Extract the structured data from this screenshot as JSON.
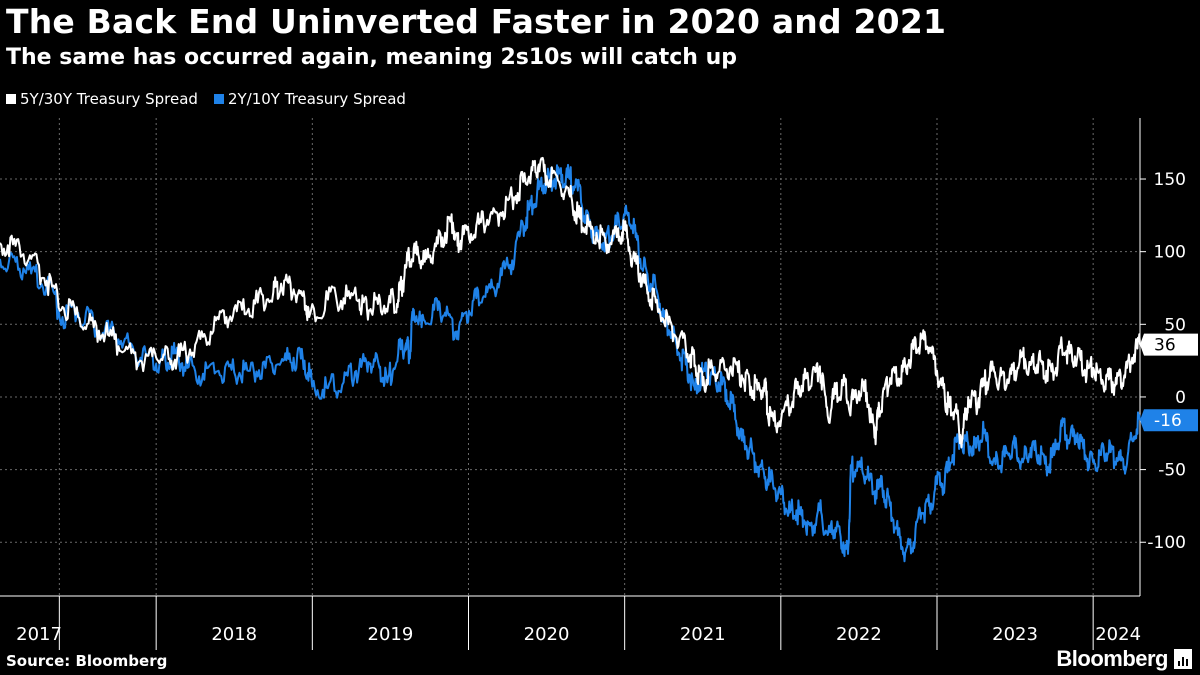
{
  "header": {
    "title": "The Back End Uninverted Faster in 2020 and 2021",
    "subtitle": "The same has occurred again, meaning 2s10s will catch up"
  },
  "footer": {
    "source": "Source: Bloomberg",
    "brand": "Bloomberg"
  },
  "colors": {
    "background": "#000000",
    "series_5s30s": "#ffffff",
    "series_2s10s": "#1f82e8",
    "grid": "#6a6a6a"
  },
  "chart_data": {
    "type": "line",
    "title": "The Back End Uninverted Faster in 2020 and 2021",
    "subtitle": "The same has occurred again, meaning 2s10s will catch up",
    "xlabel": "",
    "ylabel": "",
    "x_range": [
      2017.0,
      2024.3
    ],
    "ylim": [
      -137,
      192
    ],
    "y_ticks": [
      150,
      100,
      50,
      0,
      -50,
      -100
    ],
    "year_labels": [
      {
        "label": "2017",
        "t": 2017.25
      },
      {
        "label": "2018",
        "t": 2018.5
      },
      {
        "label": "2019",
        "t": 2019.5
      },
      {
        "label": "2020",
        "t": 2020.5
      },
      {
        "label": "2021",
        "t": 2021.5
      },
      {
        "label": "2022",
        "t": 2022.5
      },
      {
        "label": "2023",
        "t": 2023.5
      },
      {
        "label": "2024",
        "t": 2024.16
      }
    ],
    "year_boundaries": [
      2017.38,
      2018.0,
      2019.0,
      2020.0,
      2021.0,
      2022.0,
      2023.0,
      2024.0
    ],
    "grid": true,
    "legend_position": "top-left",
    "series": [
      {
        "name": "5Y/30Y Treasury Spread",
        "last_value_label": "36",
        "points": [
          [
            2017.0,
            106
          ],
          [
            2017.1,
            104
          ],
          [
            2017.2,
            95
          ],
          [
            2017.3,
            80
          ],
          [
            2017.4,
            62
          ],
          [
            2017.5,
            55
          ],
          [
            2017.6,
            48
          ],
          [
            2017.7,
            42
          ],
          [
            2017.8,
            32
          ],
          [
            2017.9,
            25
          ],
          [
            2018.0,
            27
          ],
          [
            2018.08,
            26
          ],
          [
            2018.15,
            28
          ],
          [
            2018.25,
            36
          ],
          [
            2018.35,
            45
          ],
          [
            2018.45,
            55
          ],
          [
            2018.55,
            60
          ],
          [
            2018.65,
            65
          ],
          [
            2018.75,
            72
          ],
          [
            2018.8,
            78
          ],
          [
            2018.88,
            74
          ],
          [
            2018.95,
            68
          ],
          [
            2018.98,
            55
          ],
          [
            2019.1,
            67
          ],
          [
            2019.2,
            68
          ],
          [
            2019.3,
            67
          ],
          [
            2019.35,
            60
          ],
          [
            2019.42,
            64
          ],
          [
            2019.5,
            65
          ],
          [
            2019.55,
            67
          ],
          [
            2019.58,
            80
          ],
          [
            2019.62,
            96
          ],
          [
            2019.67,
            98
          ],
          [
            2019.72,
            93
          ],
          [
            2019.78,
            101
          ],
          [
            2019.85,
            113
          ],
          [
            2019.9,
            120
          ],
          [
            2019.93,
            104
          ],
          [
            2019.97,
            112
          ],
          [
            2020.05,
            118
          ],
          [
            2020.12,
            122
          ],
          [
            2020.2,
            126
          ],
          [
            2020.28,
            137
          ],
          [
            2020.35,
            148
          ],
          [
            2020.4,
            154
          ],
          [
            2020.45,
            160
          ],
          [
            2020.5,
            152
          ],
          [
            2020.58,
            148
          ],
          [
            2020.65,
            138
          ],
          [
            2020.7,
            124
          ],
          [
            2020.75,
            117
          ],
          [
            2020.82,
            113
          ],
          [
            2020.88,
            105
          ],
          [
            2020.95,
            110
          ],
          [
            2021.0,
            115
          ],
          [
            2021.05,
            95
          ],
          [
            2021.1,
            85
          ],
          [
            2021.15,
            72
          ],
          [
            2021.2,
            65
          ],
          [
            2021.28,
            50
          ],
          [
            2021.35,
            40
          ],
          [
            2021.42,
            29
          ],
          [
            2021.45,
            22
          ],
          [
            2021.5,
            8
          ],
          [
            2021.55,
            20
          ],
          [
            2021.6,
            17
          ],
          [
            2021.68,
            21
          ],
          [
            2021.75,
            15
          ],
          [
            2021.8,
            9
          ],
          [
            2021.85,
            5
          ],
          [
            2021.9,
            10
          ],
          [
            2021.92,
            -15
          ],
          [
            2021.98,
            -18
          ],
          [
            2022.05,
            -6
          ],
          [
            2022.1,
            6
          ],
          [
            2022.15,
            12
          ],
          [
            2022.2,
            14
          ],
          [
            2022.25,
            21
          ],
          [
            2022.3,
            -13
          ],
          [
            2022.35,
            2
          ],
          [
            2022.4,
            8
          ],
          [
            2022.45,
            -5
          ],
          [
            2022.5,
            4
          ],
          [
            2022.55,
            3
          ],
          [
            2022.6,
            -28
          ],
          [
            2022.62,
            -15
          ],
          [
            2022.65,
            -2
          ],
          [
            2022.7,
            13
          ],
          [
            2022.75,
            12
          ],
          [
            2022.8,
            21
          ],
          [
            2022.85,
            33
          ],
          [
            2022.9,
            40
          ],
          [
            2022.95,
            34
          ],
          [
            2023.0,
            18
          ],
          [
            2023.05,
            0
          ],
          [
            2023.08,
            -7
          ],
          [
            2023.12,
            -10
          ],
          [
            2023.16,
            -30
          ],
          [
            2023.2,
            0
          ],
          [
            2023.25,
            -5
          ],
          [
            2023.3,
            8
          ],
          [
            2023.35,
            18
          ],
          [
            2023.4,
            12
          ],
          [
            2023.45,
            12
          ],
          [
            2023.5,
            18
          ],
          [
            2023.55,
            28
          ],
          [
            2023.6,
            22
          ],
          [
            2023.65,
            25
          ],
          [
            2023.7,
            18
          ],
          [
            2023.75,
            17
          ],
          [
            2023.8,
            35
          ],
          [
            2023.85,
            30
          ],
          [
            2023.9,
            28
          ],
          [
            2023.95,
            18
          ],
          [
            2024.0,
            20
          ],
          [
            2024.05,
            12
          ],
          [
            2024.1,
            12
          ],
          [
            2024.15,
            9
          ],
          [
            2024.2,
            15
          ],
          [
            2024.25,
            27
          ],
          [
            2024.3,
            36
          ]
        ]
      },
      {
        "name": "2Y/10Y  Treasury Spread",
        "last_value_label": "-16",
        "points": [
          [
            2017.0,
            95
          ],
          [
            2017.1,
            93
          ],
          [
            2017.2,
            85
          ],
          [
            2017.3,
            78
          ],
          [
            2017.4,
            55
          ],
          [
            2017.5,
            58
          ],
          [
            2017.6,
            50
          ],
          [
            2017.7,
            45
          ],
          [
            2017.8,
            40
          ],
          [
            2017.9,
            27
          ],
          [
            2018.0,
            23
          ],
          [
            2018.06,
            25
          ],
          [
            2018.12,
            30
          ],
          [
            2018.2,
            20
          ],
          [
            2018.3,
            16
          ],
          [
            2018.4,
            18
          ],
          [
            2018.5,
            17
          ],
          [
            2018.6,
            18
          ],
          [
            2018.7,
            20
          ],
          [
            2018.8,
            24
          ],
          [
            2018.88,
            27
          ],
          [
            2018.95,
            25
          ],
          [
            2019.0,
            7
          ],
          [
            2019.1,
            6
          ],
          [
            2019.2,
            10
          ],
          [
            2019.28,
            18
          ],
          [
            2019.36,
            24
          ],
          [
            2019.43,
            20
          ],
          [
            2019.48,
            10
          ],
          [
            2019.55,
            30
          ],
          [
            2019.6,
            37
          ],
          [
            2019.62,
            30
          ],
          [
            2019.65,
            60
          ],
          [
            2019.7,
            48
          ],
          [
            2019.78,
            60
          ],
          [
            2019.85,
            58
          ],
          [
            2019.92,
            45
          ],
          [
            2019.98,
            58
          ],
          [
            2020.05,
            68
          ],
          [
            2020.12,
            72
          ],
          [
            2020.2,
            80
          ],
          [
            2020.28,
            94
          ],
          [
            2020.35,
            118
          ],
          [
            2020.4,
            132
          ],
          [
            2020.45,
            143
          ],
          [
            2020.5,
            148
          ],
          [
            2020.55,
            150
          ],
          [
            2020.6,
            153
          ],
          [
            2020.65,
            150
          ],
          [
            2020.7,
            142
          ],
          [
            2020.75,
            125
          ],
          [
            2020.8,
            114
          ],
          [
            2020.85,
            105
          ],
          [
            2020.9,
            110
          ],
          [
            2020.95,
            118
          ],
          [
            2021.0,
            125
          ],
          [
            2021.05,
            118
          ],
          [
            2021.1,
            95
          ],
          [
            2021.15,
            80
          ],
          [
            2021.2,
            75
          ],
          [
            2021.25,
            55
          ],
          [
            2021.3,
            45
          ],
          [
            2021.35,
            30
          ],
          [
            2021.4,
            20
          ],
          [
            2021.45,
            5
          ],
          [
            2021.5,
            17
          ],
          [
            2021.55,
            15
          ],
          [
            2021.6,
            10
          ],
          [
            2021.65,
            5
          ],
          [
            2021.7,
            -10
          ],
          [
            2021.75,
            -30
          ],
          [
            2021.8,
            -35
          ],
          [
            2021.85,
            -48
          ],
          [
            2021.9,
            -55
          ],
          [
            2021.95,
            -60
          ],
          [
            2022.0,
            -67
          ],
          [
            2022.05,
            -80
          ],
          [
            2022.1,
            -78
          ],
          [
            2022.15,
            -85
          ],
          [
            2022.2,
            -90
          ],
          [
            2022.25,
            -78
          ],
          [
            2022.3,
            -95
          ],
          [
            2022.35,
            -90
          ],
          [
            2022.4,
            -100
          ],
          [
            2022.43,
            -108
          ],
          [
            2022.45,
            -50
          ],
          [
            2022.5,
            -48
          ],
          [
            2022.55,
            -55
          ],
          [
            2022.6,
            -65
          ],
          [
            2022.65,
            -62
          ],
          [
            2022.7,
            -75
          ],
          [
            2022.75,
            -95
          ],
          [
            2022.8,
            -106
          ],
          [
            2022.85,
            -100
          ],
          [
            2022.9,
            -80
          ],
          [
            2022.95,
            -75
          ],
          [
            2023.0,
            -60
          ],
          [
            2023.05,
            -58
          ],
          [
            2023.1,
            -40
          ],
          [
            2023.15,
            -30
          ],
          [
            2023.2,
            -32
          ],
          [
            2023.25,
            -35
          ],
          [
            2023.3,
            -25
          ],
          [
            2023.35,
            -45
          ],
          [
            2023.4,
            -48
          ],
          [
            2023.45,
            -38
          ],
          [
            2023.5,
            -35
          ],
          [
            2023.55,
            -45
          ],
          [
            2023.6,
            -35
          ],
          [
            2023.65,
            -40
          ],
          [
            2023.7,
            -48
          ],
          [
            2023.75,
            -40
          ],
          [
            2023.8,
            -20
          ],
          [
            2023.85,
            -30
          ],
          [
            2023.9,
            -25
          ],
          [
            2023.95,
            -40
          ],
          [
            2024.0,
            -45
          ],
          [
            2024.05,
            -40
          ],
          [
            2024.1,
            -38
          ],
          [
            2024.15,
            -42
          ],
          [
            2024.2,
            -48
          ],
          [
            2024.25,
            -30
          ],
          [
            2024.3,
            -16
          ]
        ]
      }
    ]
  }
}
